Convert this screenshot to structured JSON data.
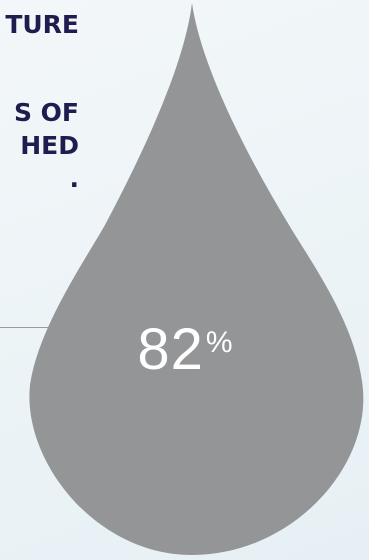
{
  "headline_lines": [
    "TURE",
    "S OF",
    "HED",
    "."
  ],
  "stat": {
    "value": "82",
    "unit": "%"
  },
  "colors": {
    "headline": "#1f1d4f",
    "drop": "#939597",
    "stat_text": "#ffffff",
    "background": "#eaf2f5"
  }
}
